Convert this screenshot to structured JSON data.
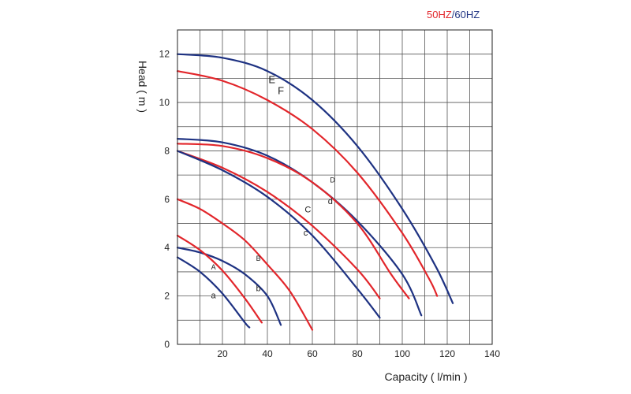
{
  "legend": {
    "hz50": "50HZ",
    "separator": "/",
    "hz60": "60HZ",
    "color50": "#e2262b",
    "color60": "#1e3282"
  },
  "chart_data": {
    "type": "line",
    "title": "",
    "xlabel": "Capacity ( l/min )",
    "ylabel": "Head ( m )",
    "xlim": [
      0,
      140
    ],
    "ylim": [
      0,
      13
    ],
    "grid": true,
    "x_ticks": [
      20,
      40,
      60,
      80,
      100,
      120,
      140
    ],
    "y_ticks": [
      0,
      2,
      4,
      6,
      8,
      10,
      12
    ],
    "x_tick_labels": [
      "20",
      "40",
      "60",
      "80",
      "100",
      "120",
      "140"
    ],
    "y_tick_labels": [
      "0",
      "2",
      "4",
      "6",
      "8",
      "10",
      "12"
    ],
    "series": [
      {
        "label": "E",
        "frequency": "60HZ",
        "color": "#1e3282",
        "points": [
          [
            0,
            12
          ],
          [
            20,
            11.85
          ],
          [
            40,
            11.3
          ],
          [
            60,
            10.1
          ],
          [
            80,
            8.2
          ],
          [
            100,
            5.6
          ],
          [
            115,
            3.2
          ],
          [
            122.5,
            1.7
          ]
        ],
        "label_pos": [
          42,
          10.8
        ]
      },
      {
        "label": "F",
        "frequency": "50HZ",
        "color": "#e2262b",
        "points": [
          [
            0,
            11.3
          ],
          [
            20,
            10.9
          ],
          [
            40,
            10.1
          ],
          [
            60,
            8.9
          ],
          [
            80,
            7.1
          ],
          [
            100,
            4.6
          ],
          [
            112,
            2.7
          ],
          [
            115.5,
            2.0
          ]
        ],
        "label_pos": [
          46,
          10.35
        ]
      },
      {
        "label": "D",
        "frequency": "60HZ",
        "color": "#1e3282",
        "points": [
          [
            0,
            8.5
          ],
          [
            20,
            8.35
          ],
          [
            40,
            7.8
          ],
          [
            60,
            6.7
          ],
          [
            80,
            5.1
          ],
          [
            100,
            2.9
          ],
          [
            108.5,
            1.2
          ]
        ],
        "label_pos": [
          69,
          6.7
        ]
      },
      {
        "label": "d",
        "frequency": "50HZ",
        "color": "#e2262b",
        "points": [
          [
            0,
            8.3
          ],
          [
            20,
            8.2
          ],
          [
            40,
            7.7
          ],
          [
            60,
            6.7
          ],
          [
            80,
            5.0
          ],
          [
            95,
            2.9
          ],
          [
            103,
            1.9
          ]
        ],
        "label_pos": [
          68,
          5.8
        ]
      },
      {
        "label": "C",
        "frequency": "50HZ",
        "color": "#e2262b",
        "points": [
          [
            0,
            8.0
          ],
          [
            20,
            7.3
          ],
          [
            40,
            6.3
          ],
          [
            60,
            4.9
          ],
          [
            80,
            3.1
          ],
          [
            90,
            1.9
          ]
        ],
        "label_pos": [
          58,
          5.45
        ]
      },
      {
        "label": "c",
        "frequency": "60HZ",
        "color": "#1e3282",
        "points": [
          [
            0,
            8.0
          ],
          [
            20,
            7.2
          ],
          [
            40,
            6.1
          ],
          [
            60,
            4.5
          ],
          [
            80,
            2.3
          ],
          [
            90,
            1.1
          ]
        ],
        "label_pos": [
          57,
          4.5
        ]
      },
      {
        "label": "B",
        "frequency": "50HZ",
        "color": "#e2262b",
        "points": [
          [
            0,
            6.0
          ],
          [
            10,
            5.6
          ],
          [
            20,
            5.0
          ],
          [
            30,
            4.3
          ],
          [
            40,
            3.3
          ],
          [
            50,
            2.2
          ],
          [
            60,
            0.6
          ]
        ],
        "label_pos": [
          36,
          3.45
        ]
      },
      {
        "label": "b",
        "frequency": "60HZ",
        "color": "#1e3282",
        "points": [
          [
            0,
            4.0
          ],
          [
            10,
            3.8
          ],
          [
            20,
            3.45
          ],
          [
            30,
            2.9
          ],
          [
            40,
            2.0
          ],
          [
            46,
            0.8
          ]
        ],
        "label_pos": [
          36,
          2.2
        ]
      },
      {
        "label": "A",
        "frequency": "50HZ",
        "color": "#e2262b",
        "points": [
          [
            0,
            4.5
          ],
          [
            10,
            3.9
          ],
          [
            20,
            3.05
          ],
          [
            30,
            1.9
          ],
          [
            37.5,
            0.9
          ]
        ],
        "label_pos": [
          16,
          3.1
        ]
      },
      {
        "label": "a",
        "frequency": "60HZ",
        "color": "#1e3282",
        "points": [
          [
            0,
            3.6
          ],
          [
            10,
            3.0
          ],
          [
            20,
            2.1
          ],
          [
            30,
            0.9
          ],
          [
            32,
            0.7
          ]
        ],
        "label_pos": [
          16,
          1.9
        ]
      }
    ]
  }
}
